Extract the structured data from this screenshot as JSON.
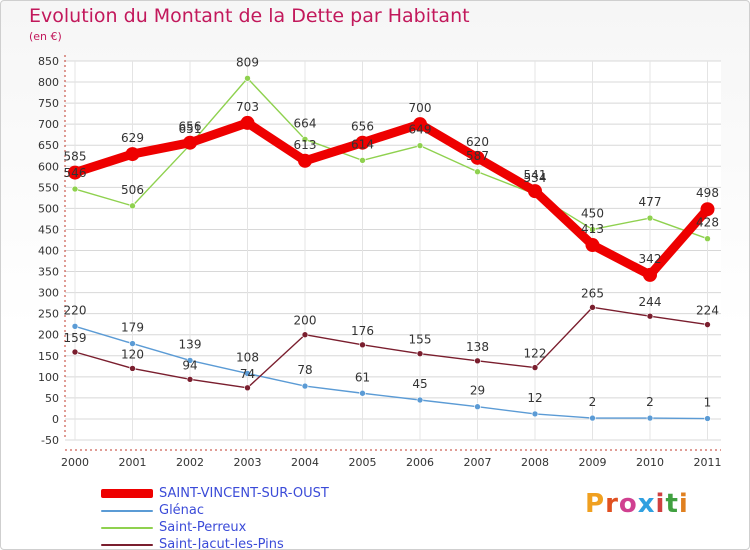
{
  "title": "Evolution du Montant de la Dette par Habitant",
  "subtitle": "(en €)",
  "logo": {
    "text": "Proxiti",
    "letter_colors": [
      "#f0a020",
      "#e05020",
      "#d04090",
      "#30a0e0",
      "#d04040",
      "#40a040",
      "#e08020"
    ]
  },
  "chart_data": {
    "type": "line",
    "x": [
      "2000",
      "2001",
      "2002",
      "2003",
      "2004",
      "2005",
      "2006",
      "2007",
      "2008",
      "2009",
      "2010",
      "2011"
    ],
    "ylim": [
      -50,
      850
    ],
    "yticks": [
      -50,
      0,
      50,
      100,
      150,
      200,
      250,
      300,
      350,
      400,
      450,
      500,
      550,
      600,
      650,
      700,
      750,
      800,
      850
    ],
    "grid": true,
    "legend_position": "bottom-left",
    "series": [
      {
        "name": "SAINT-VINCENT-SUR-OUST",
        "color": "#ee0000",
        "values": [
          585,
          629,
          656,
          703,
          613,
          656,
          700,
          620,
          541,
          413,
          342,
          498
        ],
        "labels": [
          "585",
          "629",
          "656",
          "703",
          "613",
          "656",
          "700",
          "620",
          "541",
          "413",
          "342",
          "498"
        ]
      },
      {
        "name": "Glénac",
        "color": "#5b9bd5",
        "values": [
          220,
          179,
          139,
          108,
          78,
          61,
          45,
          29,
          12,
          2,
          2,
          1
        ],
        "labels": [
          "220",
          "179",
          "139",
          "108",
          "78",
          "61",
          "45",
          "29",
          "12",
          "2",
          "2",
          "1"
        ]
      },
      {
        "name": "Saint-Perreux",
        "color": "#8fd14f",
        "values": [
          546,
          506,
          651,
          809,
          664,
          614,
          649,
          587,
          534,
          450,
          477,
          428
        ],
        "labels": [
          "546",
          "506",
          "651",
          "809",
          "664",
          "614",
          "649",
          "587",
          "534",
          "450",
          "477",
          "428"
        ]
      },
      {
        "name": "Saint-Jacut-les-Pins",
        "color": "#7a1e2e",
        "values": [
          159,
          120,
          94,
          74,
          200,
          176,
          155,
          138,
          122,
          265,
          244,
          224
        ],
        "labels": [
          "159",
          "120",
          "94",
          "74",
          "200",
          "176",
          "155",
          "138",
          "122",
          "265",
          "244",
          "224"
        ]
      }
    ]
  }
}
